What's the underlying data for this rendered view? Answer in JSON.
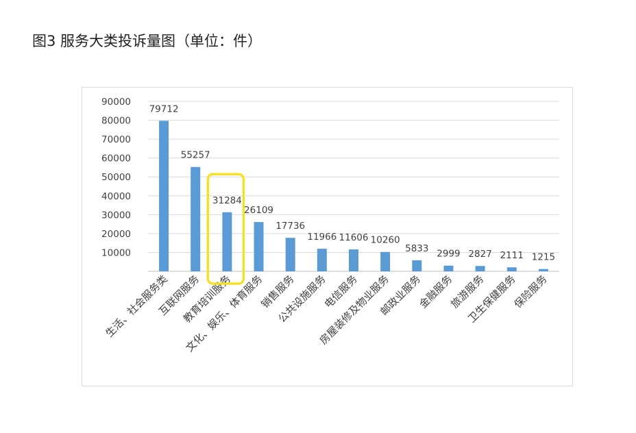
{
  "figure": {
    "title": "图3  服务大类投诉量图（单位：件）"
  },
  "chart_data": {
    "type": "bar",
    "categories": [
      "生活、社会服务类",
      "互联网服务",
      "教育培训服务",
      "文化、娱乐、体育服务",
      "销售服务",
      "公共设施服务",
      "电信服务",
      "房屋装修及物业服务",
      "邮政业服务",
      "金融服务",
      "旅游服务",
      "卫生保健服务",
      "保险服务"
    ],
    "values": [
      79712,
      55257,
      31284,
      26109,
      17736,
      11966,
      11606,
      10260,
      5833,
      2999,
      2827,
      2111,
      1215
    ],
    "value_labels": [
      "79712",
      "55257",
      "31284",
      "26109",
      "17736",
      "11966",
      "11606",
      "10260",
      "5833",
      "2999",
      "2827",
      "2111",
      "1215"
    ],
    "y_ticks": [
      10000,
      20000,
      30000,
      40000,
      50000,
      60000,
      70000,
      80000,
      90000
    ],
    "y_tick_labels": [
      "10000",
      "20000",
      "30000",
      "40000",
      "50000",
      "60000",
      "70000",
      "80000",
      "90000"
    ],
    "ylim": [
      0,
      90000
    ],
    "grid": true,
    "legend": "none",
    "highlighted_category": "教育培训服务",
    "colors": {
      "bar": "#5b9bd5",
      "grid": "#d9d9d9",
      "axis": "#bfbfbf",
      "text": "#404040",
      "highlight": "#f5e02b"
    }
  }
}
